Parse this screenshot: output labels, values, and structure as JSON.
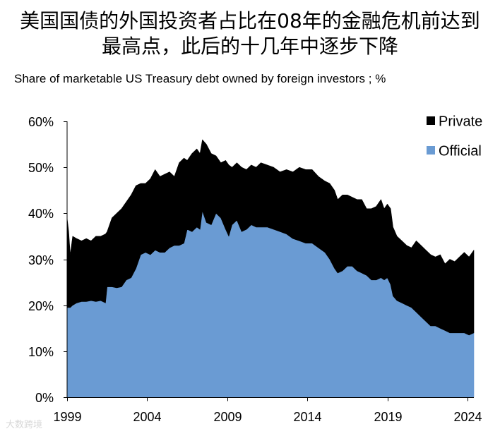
{
  "title": {
    "line1": "美国国债的外国投资者占比在08年的金融危机前达到",
    "line2": "最高点，此后的十几年中逐步下降"
  },
  "watermark": "大数跨境",
  "colors": {
    "official": "#6A9BD3",
    "private": "#000000",
    "axis": "#000000"
  },
  "chart_data": {
    "type": "area",
    "stacked": true,
    "title": "Share of marketable US Treasury debt owned by foreign investors ; %",
    "xlim": [
      1999,
      2024.4
    ],
    "ylim": [
      0,
      60
    ],
    "xticks": [
      1999,
      2004,
      2009,
      2014,
      2019,
      2024
    ],
    "xtick_labels": [
      "1999",
      "2004",
      "2009",
      "2014",
      "2019",
      "2024"
    ],
    "yticks": [
      0,
      10,
      20,
      30,
      40,
      50,
      60
    ],
    "ytick_labels": [
      "0%",
      "10%",
      "20%",
      "30%",
      "40%",
      "50%",
      "60%"
    ],
    "legend": {
      "position": "top-right"
    },
    "x": [
      1999.0,
      1999.1,
      1999.2,
      1999.35,
      1999.6,
      1999.9,
      2000.2,
      2000.5,
      2000.8,
      2001.1,
      2001.4,
      2001.5,
      2001.8,
      2002.1,
      2002.4,
      2002.7,
      2003.0,
      2003.3,
      2003.6,
      2003.9,
      2004.2,
      2004.5,
      2004.8,
      2005.1,
      2005.4,
      2005.7,
      2006.0,
      2006.3,
      2006.5,
      2006.8,
      2007.1,
      2007.3,
      2007.45,
      2007.7,
      2008.0,
      2008.3,
      2008.6,
      2008.9,
      2009.1,
      2009.3,
      2009.6,
      2009.9,
      2010.2,
      2010.5,
      2010.8,
      2011.1,
      2011.5,
      2011.9,
      2012.3,
      2012.7,
      2013.1,
      2013.5,
      2013.9,
      2014.3,
      2014.7,
      2015.1,
      2015.4,
      2015.7,
      2015.9,
      2016.2,
      2016.5,
      2016.8,
      2017.1,
      2017.4,
      2017.7,
      2018.0,
      2018.3,
      2018.6,
      2018.8,
      2019.0,
      2019.2,
      2019.35,
      2019.6,
      2019.9,
      2020.2,
      2020.5,
      2020.8,
      2021.1,
      2021.4,
      2021.7,
      2022.0,
      2022.3,
      2022.6,
      2022.9,
      2023.2,
      2023.5,
      2023.8,
      2024.1,
      2024.4
    ],
    "series": [
      {
        "name": "Official",
        "values": [
          19.5,
          19.5,
          19.5,
          20.0,
          20.5,
          20.8,
          20.8,
          21.0,
          20.8,
          21.0,
          20.5,
          24.0,
          24.0,
          23.8,
          24.0,
          25.5,
          26.0,
          28.0,
          31.0,
          31.5,
          31.0,
          32.0,
          31.5,
          31.5,
          32.5,
          33.0,
          33.0,
          33.5,
          36.5,
          36.0,
          37.0,
          36.5,
          40.5,
          38.0,
          37.5,
          40.0,
          39.0,
          36.5,
          35.0,
          37.5,
          38.5,
          36.0,
          36.5,
          37.5,
          37.0,
          37.0,
          37.0,
          36.5,
          36.0,
          35.5,
          34.5,
          34.0,
          33.5,
          33.5,
          32.5,
          31.5,
          30.0,
          28.0,
          27.0,
          27.5,
          28.5,
          28.5,
          27.5,
          27.0,
          26.5,
          25.5,
          25.5,
          26.0,
          25.5,
          26.0,
          24.5,
          22.0,
          21.0,
          20.5,
          20.0,
          19.5,
          18.5,
          17.5,
          16.5,
          15.5,
          15.5,
          15.0,
          14.5,
          14.0,
          14.0,
          14.0,
          14.0,
          13.5,
          14.0
        ]
      },
      {
        "name": "Private",
        "values": [
          19.5,
          16.5,
          11.5,
          15.0,
          14.0,
          13.2,
          13.7,
          13.0,
          14.2,
          14.0,
          15.0,
          12.0,
          15.0,
          16.2,
          17.0,
          17.0,
          18.0,
          18.0,
          15.5,
          15.0,
          16.5,
          17.5,
          16.5,
          17.0,
          16.5,
          15.0,
          18.0,
          18.5,
          15.0,
          17.0,
          17.0,
          16.5,
          15.5,
          17.0,
          15.5,
          12.5,
          12.0,
          15.0,
          15.5,
          12.5,
          12.5,
          14.0,
          13.0,
          13.0,
          13.0,
          14.0,
          13.5,
          13.5,
          13.0,
          14.0,
          14.5,
          16.0,
          16.0,
          16.0,
          15.5,
          15.5,
          16.5,
          17.0,
          16.0,
          16.5,
          15.5,
          15.0,
          15.5,
          16.0,
          14.5,
          15.5,
          16.0,
          17.0,
          15.5,
          16.0,
          16.5,
          15.0,
          14.0,
          13.5,
          13.0,
          13.0,
          15.5,
          15.5,
          15.5,
          15.5,
          15.0,
          16.0,
          14.5,
          16.0,
          15.5,
          16.5,
          17.5,
          17.0,
          18.0
        ]
      }
    ]
  }
}
